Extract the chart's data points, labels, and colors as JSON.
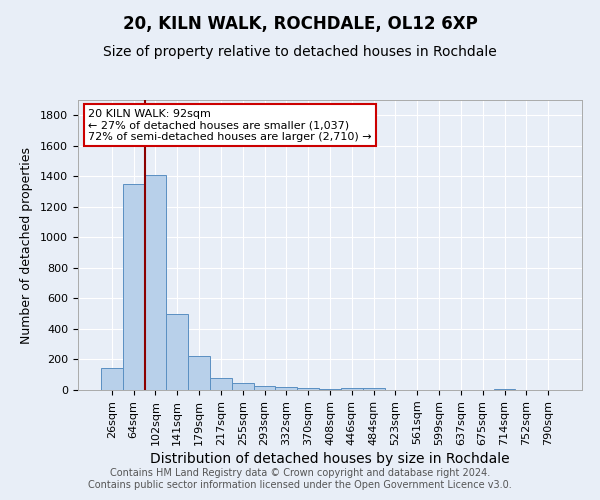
{
  "title": "20, KILN WALK, ROCHDALE, OL12 6XP",
  "subtitle": "Size of property relative to detached houses in Rochdale",
  "xlabel": "Distribution of detached houses by size in Rochdale",
  "ylabel": "Number of detached properties",
  "categories": [
    "26sqm",
    "64sqm",
    "102sqm",
    "141sqm",
    "179sqm",
    "217sqm",
    "255sqm",
    "293sqm",
    "332sqm",
    "370sqm",
    "408sqm",
    "446sqm",
    "484sqm",
    "523sqm",
    "561sqm",
    "599sqm",
    "637sqm",
    "675sqm",
    "714sqm",
    "752sqm",
    "790sqm"
  ],
  "values": [
    145,
    1350,
    1410,
    495,
    225,
    80,
    48,
    28,
    18,
    10,
    8,
    13,
    10,
    0,
    0,
    0,
    0,
    0,
    5,
    0,
    0
  ],
  "bar_color": "#b8d0ea",
  "bar_edge_color": "#5a8fc2",
  "vline_color": "#8b0000",
  "vline_x_index": 1.5,
  "annotation_text": "20 KILN WALK: 92sqm\n← 27% of detached houses are smaller (1,037)\n72% of semi-detached houses are larger (2,710) →",
  "annotation_box_color": "#ffffff",
  "annotation_box_edge_color": "#cc0000",
  "ylim": [
    0,
    1900
  ],
  "yticks": [
    0,
    200,
    400,
    600,
    800,
    1000,
    1200,
    1400,
    1600,
    1800
  ],
  "bg_color": "#e8eef7",
  "footer": "Contains HM Land Registry data © Crown copyright and database right 2024.\nContains public sector information licensed under the Open Government Licence v3.0.",
  "title_fontsize": 12,
  "subtitle_fontsize": 10,
  "xlabel_fontsize": 10,
  "ylabel_fontsize": 9,
  "tick_fontsize": 8,
  "footer_fontsize": 7,
  "annotation_fontsize": 8
}
